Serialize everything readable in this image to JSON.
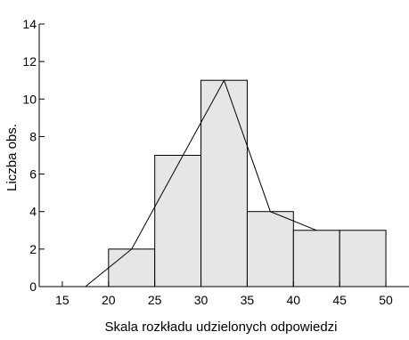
{
  "chart_data": {
    "type": "bar",
    "title": "",
    "xlabel": "Skala rozkładu udzielonych odpowiedzi",
    "ylabel": "Liczba obs.",
    "xlim": [
      12.5,
      52.5
    ],
    "ylim": [
      0,
      14
    ],
    "xticks": [
      15,
      20,
      25,
      30,
      35,
      40,
      45,
      50
    ],
    "yticks": [
      0,
      2,
      4,
      6,
      8,
      10,
      12,
      14
    ],
    "bins": [
      {
        "from": 20,
        "to": 25,
        "value": 2
      },
      {
        "from": 25,
        "to": 30,
        "value": 7
      },
      {
        "from": 30,
        "to": 35,
        "value": 11
      },
      {
        "from": 35,
        "to": 40,
        "value": 4
      },
      {
        "from": 40,
        "to": 45,
        "value": 3
      },
      {
        "from": 45,
        "to": 50,
        "value": 3
      }
    ],
    "frequency_polygon": [
      {
        "x": 17.5,
        "y": 0
      },
      {
        "x": 22.5,
        "y": 2
      },
      {
        "x": 32.5,
        "y": 11
      },
      {
        "x": 37.5,
        "y": 4
      },
      {
        "x": 42.5,
        "y": 3
      }
    ],
    "grid": false,
    "legend": "none"
  }
}
